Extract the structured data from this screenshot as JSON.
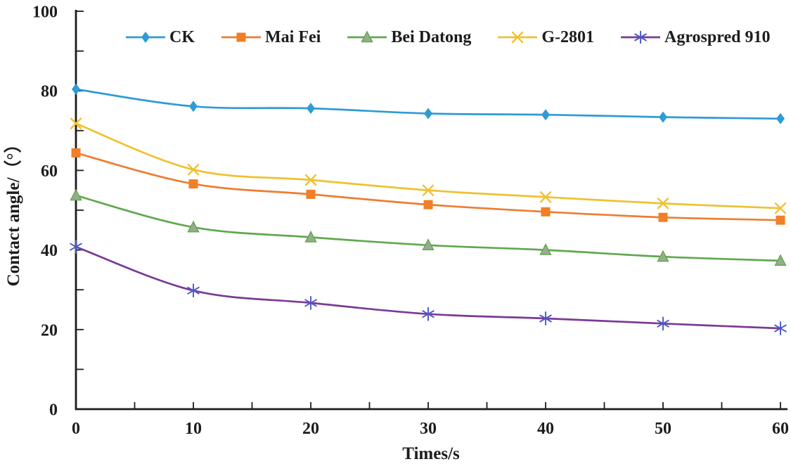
{
  "chart_data": {
    "type": "line",
    "title": "",
    "xlabel": "Times/s",
    "ylabel": "Contact angle/（°）",
    "xlim": [
      0,
      60
    ],
    "ylim": [
      0,
      100
    ],
    "grid": false,
    "legend_position": "top-center",
    "x": [
      0,
      10,
      20,
      30,
      40,
      50,
      60
    ],
    "x_ticks": [
      5,
      10,
      15,
      20,
      25,
      30,
      35,
      40,
      45,
      50,
      55,
      60
    ],
    "x_tick_labels": [
      "0",
      "10",
      "20",
      "30",
      "40",
      "50",
      "60"
    ],
    "y_ticks": [
      10,
      20,
      30,
      40,
      50,
      60,
      70,
      80,
      90,
      100
    ],
    "y_tick_labels": [
      "0",
      "20",
      "40",
      "60",
      "80",
      "100"
    ],
    "axis_color": "#1c1c1c",
    "series": [
      {
        "name": "CK",
        "color": "#2E9BD5",
        "marker": "diamond",
        "marker_color": "#2E9BD5",
        "values": [
          80.4,
          76.1,
          75.6,
          74.3,
          74.0,
          73.4,
          73.0
        ]
      },
      {
        "name": "Mai Fei",
        "color": "#ED7D31",
        "marker": "square",
        "marker_color": "#F07F27",
        "values": [
          64.4,
          56.6,
          54.0,
          51.4,
          49.6,
          48.2,
          47.5
        ]
      },
      {
        "name": "Bei Datong",
        "color": "#5FA84E",
        "marker": "triangle",
        "marker_color": "#97AC8B",
        "values": [
          53.7,
          45.7,
          43.2,
          41.2,
          40.0,
          38.3,
          37.3
        ]
      },
      {
        "name": "G-2801",
        "color": "#EFC132",
        "marker": "x",
        "marker_color": "#EFC132",
        "values": [
          71.8,
          60.2,
          57.6,
          55.0,
          53.3,
          51.7,
          50.5
        ]
      },
      {
        "name": "Agrospred 910",
        "color": "#7B3A96",
        "marker": "asterisk",
        "marker_color": "#4C57C5",
        "values": [
          40.8,
          29.8,
          26.7,
          23.9,
          22.8,
          21.5,
          20.3
        ]
      }
    ]
  }
}
